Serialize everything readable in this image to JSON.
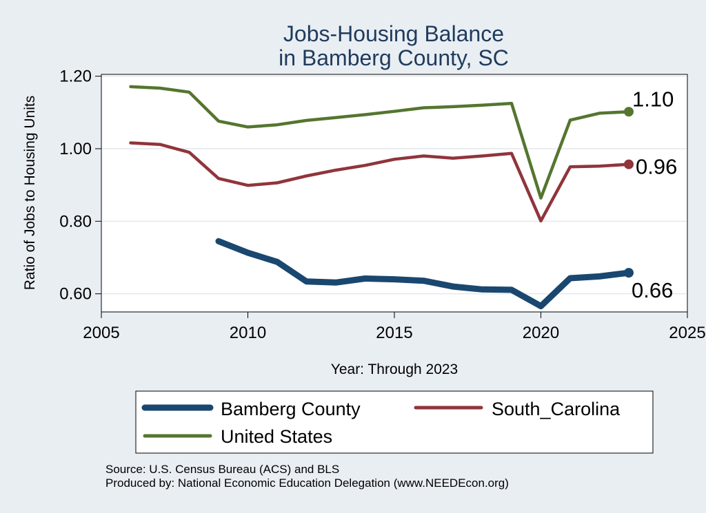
{
  "chart_data": {
    "type": "line",
    "title": [
      "Jobs-Housing Balance",
      "in Bamberg County, SC"
    ],
    "xlabel": "Year: Through 2023",
    "ylabel": "Ratio of Jobs to Housing Units",
    "xlim": [
      2005,
      2025
    ],
    "ylim": [
      0.55,
      1.205
    ],
    "x_ticks": [
      2005,
      2010,
      2015,
      2020,
      2025
    ],
    "x_tick_labels": [
      "2005",
      "2010",
      "2015",
      "2020",
      "2025"
    ],
    "y_ticks": [
      0.6,
      0.8,
      1.0,
      1.2
    ],
    "y_tick_labels": [
      "0.60",
      "0.80",
      "1.00",
      "1.20"
    ],
    "grid": true,
    "series": [
      {
        "name": "Bamberg County",
        "color": "#1a476f",
        "x": [
          2009,
          2010,
          2011,
          2012,
          2013,
          2014,
          2015,
          2016,
          2017,
          2018,
          2019,
          2020,
          2021,
          2022,
          2023
        ],
        "values": [
          0.745,
          0.713,
          0.688,
          0.634,
          0.631,
          0.642,
          0.64,
          0.636,
          0.62,
          0.612,
          0.611,
          0.566,
          0.643,
          0.648,
          0.658
        ],
        "end_label": "0.66"
      },
      {
        "name": "South_Carolina",
        "color": "#90353b",
        "x": [
          2006,
          2007,
          2008,
          2009,
          2010,
          2011,
          2012,
          2013,
          2014,
          2015,
          2016,
          2017,
          2018,
          2019,
          2020,
          2021,
          2022,
          2023
        ],
        "values": [
          1.016,
          1.012,
          0.99,
          0.918,
          0.899,
          0.906,
          0.925,
          0.941,
          0.954,
          0.971,
          0.98,
          0.974,
          0.98,
          0.987,
          0.801,
          0.95,
          0.952,
          0.957
        ],
        "end_label": "0.96"
      },
      {
        "name": "United States",
        "color": "#55752f",
        "x": [
          2006,
          2007,
          2008,
          2009,
          2010,
          2011,
          2012,
          2013,
          2014,
          2015,
          2016,
          2017,
          2018,
          2019,
          2020,
          2021,
          2022,
          2023
        ],
        "values": [
          1.171,
          1.167,
          1.156,
          1.076,
          1.06,
          1.066,
          1.078,
          1.086,
          1.094,
          1.103,
          1.113,
          1.116,
          1.12,
          1.125,
          0.864,
          1.079,
          1.098,
          1.102
        ],
        "end_label": "1.10"
      }
    ],
    "legend": {
      "position": "bottom",
      "items": [
        "Bamberg County",
        "South_Carolina",
        "United States"
      ]
    },
    "notes": [
      "Source: U.S. Census Bureau (ACS) and BLS",
      "Produced by: National Economic Education Delegation (www.NEEDEcon.org)"
    ]
  }
}
